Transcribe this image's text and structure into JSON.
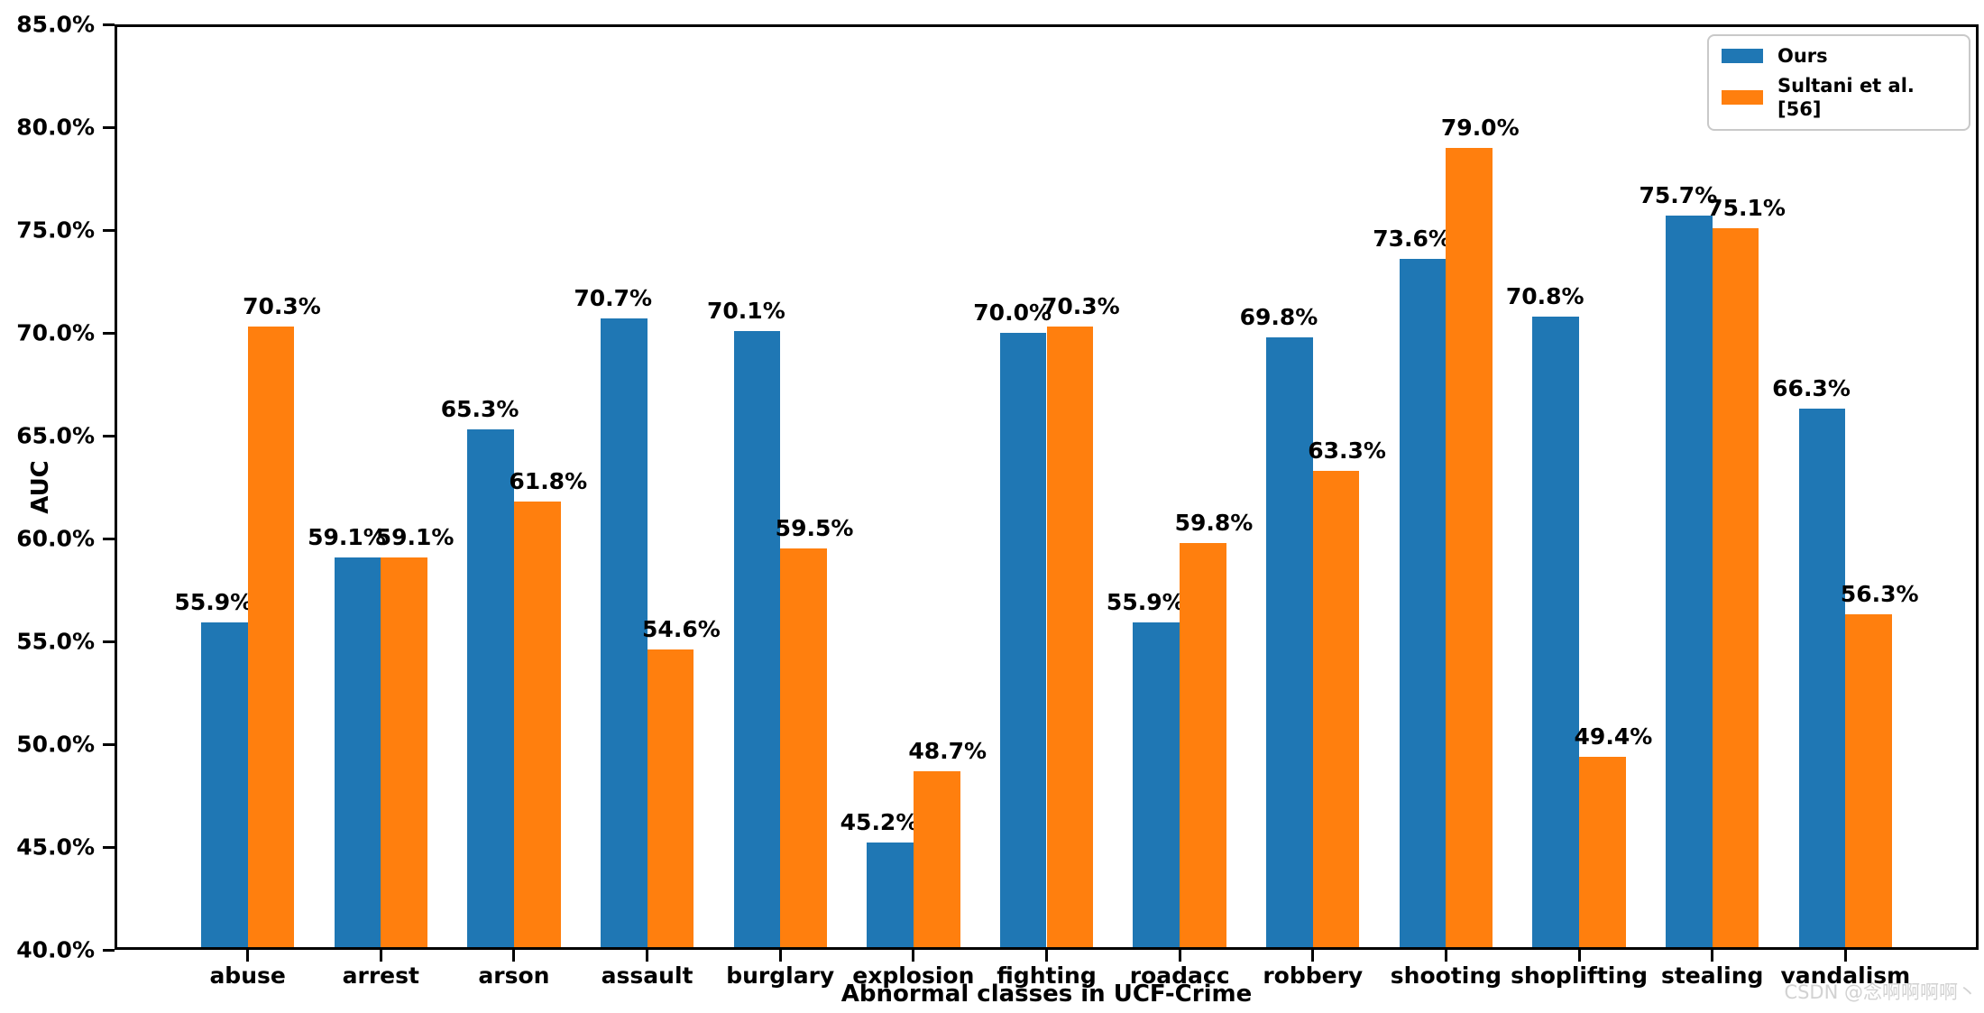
{
  "chart_data": {
    "type": "bar",
    "title": "",
    "xlabel": "Abnormal classes in UCF-Crime",
    "ylabel": "AUC",
    "categories": [
      "abuse",
      "arrest",
      "arson",
      "assault",
      "burglary",
      "explosion",
      "fighting",
      "roadacc",
      "robbery",
      "shooting",
      "shoplifting",
      "stealing",
      "vandalism"
    ],
    "series": [
      {
        "name": "Ours",
        "color": "#1f77b4",
        "values": [
          55.9,
          59.1,
          65.3,
          70.7,
          70.1,
          45.2,
          70.0,
          55.9,
          69.8,
          73.6,
          70.8,
          75.7,
          66.3
        ]
      },
      {
        "name": "Sultani et al.[56]",
        "color": "#ff7f0e",
        "values": [
          70.3,
          59.1,
          61.8,
          54.6,
          59.5,
          48.7,
          70.3,
          59.8,
          63.3,
          79.0,
          49.4,
          75.1,
          56.3
        ]
      }
    ],
    "ylim": [
      40,
      85
    ],
    "ytick_step": 5,
    "ytick_labels": [
      "40.0%",
      "45.0%",
      "50.0%",
      "55.0%",
      "60.0%",
      "65.0%",
      "70.0%",
      "75.0%",
      "80.0%",
      "85.0%"
    ],
    "value_label_suffix": "%",
    "legend_position": "top-right",
    "grid": false,
    "bar_relative_width": 0.35
  },
  "watermark": {
    "text": "CSDN @念啊啊啊啊丶",
    "color": "#d2d2d2"
  }
}
